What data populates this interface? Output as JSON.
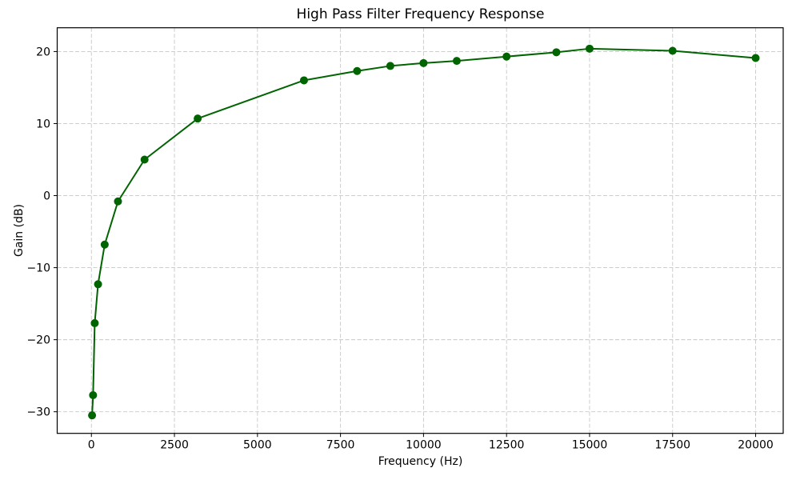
{
  "chart_data": {
    "type": "line",
    "title": "High Pass Filter Frequency Response",
    "xlabel": "Frequency (Hz)",
    "ylabel": "Gain (dB)",
    "series": [
      {
        "name": "gain-response",
        "x": [
          20,
          50,
          100,
          200,
          400,
          800,
          1600,
          3200,
          6400,
          8000,
          9000,
          10000,
          11000,
          12500,
          14000,
          15000,
          17500,
          20000
        ],
        "y": [
          -30.5,
          -27.7,
          -17.7,
          -12.3,
          -6.8,
          -0.8,
          5.0,
          10.7,
          16.0,
          17.3,
          18.0,
          18.4,
          18.7,
          19.3,
          19.9,
          20.4,
          20.1,
          19.1
        ],
        "color": "#006400",
        "marker": "circle",
        "line_width": 2,
        "marker_radius": 5
      }
    ],
    "xticks": {
      "values": [
        0,
        2500,
        5000,
        7500,
        10000,
        12500,
        15000,
        17500,
        20000
      ],
      "labels": [
        "0",
        "2500",
        "5000",
        "7500",
        "10000",
        "12500",
        "15000",
        "17500",
        "20000"
      ]
    },
    "yticks": {
      "values": [
        -30,
        -20,
        -10,
        0,
        10,
        20
      ],
      "labels": [
        "−30",
        "−20",
        "−10",
        "0",
        "10",
        "20"
      ]
    },
    "xlim": [
      -1030,
      20830
    ],
    "ylim": [
      -33.0,
      23.3
    ],
    "grid": true,
    "grid_color": "#c8c8c8",
    "grid_dash": "5 2.5",
    "axis_color": "#000000",
    "background": "#ffffff",
    "legend": "none"
  }
}
